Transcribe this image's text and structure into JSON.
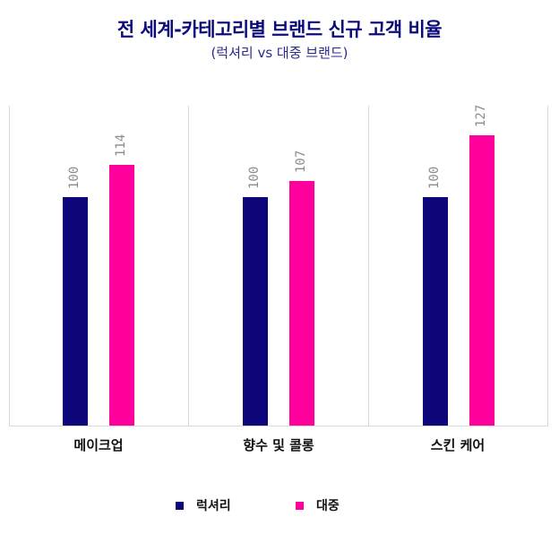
{
  "header": {
    "title": "전 세계-카테고리별 브랜드 신규 고객 비율",
    "subtitle": "(럭셔리 vs 대중 브랜드)"
  },
  "colors": {
    "luxury": "#0c067a",
    "mass": "#ff009c"
  },
  "legend": [
    {
      "label": "럭셔리",
      "color": "#0c067a"
    },
    {
      "label": "대중",
      "color": "#ff009c"
    }
  ],
  "groups": [
    {
      "category": "메이크업",
      "luxury": "100",
      "mass": "114"
    },
    {
      "category": "향수 및 콜롱",
      "luxury": "100",
      "mass": "107"
    },
    {
      "category": "스킨 케어",
      "luxury": "100",
      "mass": "127"
    }
  ],
  "chart_data": {
    "type": "bar",
    "title": "전 세계-카테고리별 브랜드 신규 고객 비율",
    "subtitle": "(럭셔리 vs 대중 브랜드)",
    "categories": [
      "메이크업",
      "향수 및 콜롱",
      "스킨 케어"
    ],
    "series": [
      {
        "name": "럭셔리",
        "color": "#0c067a",
        "values": [
          100,
          100,
          100
        ]
      },
      {
        "name": "대중",
        "color": "#ff009c",
        "values": [
          114,
          107,
          127
        ]
      }
    ],
    "xlabel": "",
    "ylabel": "",
    "ylim": [
      0,
      140
    ],
    "grid": false,
    "legend_position": "bottom",
    "data_labels": true
  }
}
